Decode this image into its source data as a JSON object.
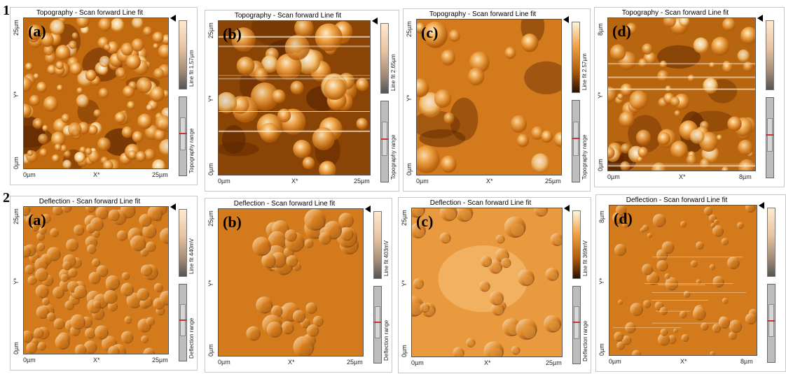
{
  "rows": [
    {
      "num": "1",
      "panels": [
        {
          "letter": "(a)",
          "title": "Topography - Scan forward    Line fit",
          "ytop": "25µm",
          "ybot": "0µm",
          "ymid": "Y*",
          "xl": "0µm",
          "xm": "X*",
          "xr": "25µm",
          "cbar": "Line fit 1.57µm",
          "range": "Topography range"
        },
        {
          "letter": "(b)",
          "title": "Topography - Scan forward    Line fit",
          "ytop": "25µm",
          "ybot": "0µm",
          "ymid": "Y*",
          "xl": "0µm",
          "xm": "X*",
          "xr": "25µm",
          "cbar": "Line fit 2.65µm",
          "range": "Topography range"
        },
        {
          "letter": "(c)",
          "title": "Topography - Scan forward    Line fit",
          "ytop": "25µm",
          "ybot": "0µm",
          "ymid": "Y*",
          "xl": "0µm",
          "xm": "X*",
          "xr": "25µm",
          "cbar": "Line fit 2.57µm",
          "range": "Topography range"
        },
        {
          "letter": "(d)",
          "title": "Topography - Scan forward    Line fit",
          "ytop": "8µm",
          "ybot": "0µm",
          "ymid": "Y*",
          "xl": "0µm",
          "xm": "X*",
          "xr": "8µm",
          "cbar": "",
          "range": ""
        }
      ]
    },
    {
      "num": "2",
      "panels": [
        {
          "letter": "(a)",
          "title": "Deflection - Scan forward    Line fit",
          "ytop": "25µm",
          "ybot": "0µm",
          "ymid": "Y*",
          "xl": "0µm",
          "xm": "X*",
          "xr": "25µm",
          "cbar": "Line fit 440mV",
          "range": "Deflection range"
        },
        {
          "letter": "(b)",
          "title": "Deflection - Scan forward    Line fit",
          "ytop": "25µm",
          "ybot": "0µm",
          "ymid": "Y*",
          "xl": "0µm",
          "xm": "X*",
          "xr": "25µm",
          "cbar": "Line fit 403mV",
          "range": "Deflection range"
        },
        {
          "letter": "(c)",
          "title": "Deflection - Scan forward    Line fit",
          "ytop": "25µm",
          "ybot": "0µm",
          "ymid": "Y*",
          "xl": "0µm",
          "xm": "X*",
          "xr": "25µm",
          "cbar": "Line fit 369mV",
          "range": "Deflection range"
        },
        {
          "letter": "(d)",
          "title": "Deflection - Scan forward    Line fit",
          "ytop": "8µm",
          "ybot": "0µm",
          "ymid": "Y*",
          "xl": "0µm",
          "xm": "X*",
          "xr": "8µm",
          "cbar": "",
          "range": ""
        }
      ]
    }
  ],
  "colors": {
    "afm_dark": "#5a2400",
    "afm_mid": "#c8700f",
    "afm_light": "#f6c27a",
    "afm_highlight": "#fff2d9"
  }
}
